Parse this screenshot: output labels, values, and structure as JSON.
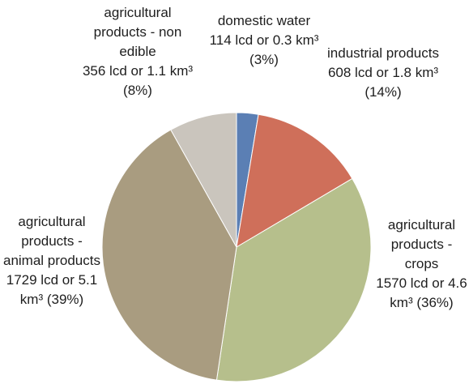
{
  "chart_data": {
    "type": "pie",
    "categories": [
      "domestic water",
      "industrial products",
      "agricultural products - crops",
      "agricultural products - animal products",
      "agricultural products - non edible"
    ],
    "values": [
      114,
      608,
      1570,
      1729,
      356
    ],
    "value_labels": [
      "114 lcd or 0.3 km³ (3%)",
      "608 lcd or 1.8 km³ (14%)",
      "1570 lcd or 4.6 km³ (36%)",
      "1729 lcd or 5.1 km³ (39%)",
      "356 lcd or 1.1 km³ (8%)"
    ],
    "colors": [
      "#5b7fb4",
      "#cf6f5a",
      "#b6bf8c",
      "#a99c80",
      "#cac5bd"
    ]
  }
}
